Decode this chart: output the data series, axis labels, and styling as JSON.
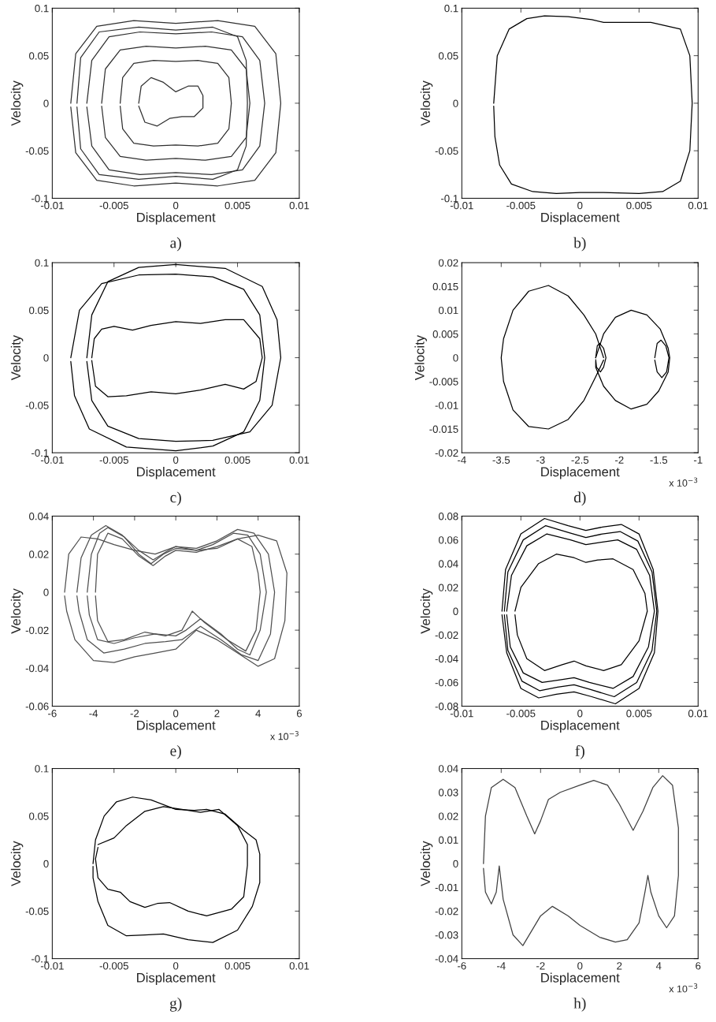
{
  "chart_data": [
    {
      "type": "line",
      "xlabel": "Displacement",
      "ylabel": "Velocity",
      "xlim": [
        -0.01,
        0.01
      ],
      "ylim": [
        -0.1,
        0.1
      ],
      "xticks": [
        -0.01,
        -0.005,
        0,
        0.005,
        0.01
      ],
      "yticks": [
        -0.1,
        -0.05,
        0,
        0.05,
        0.1
      ],
      "annotations": [
        "a)"
      ],
      "series": [
        {
          "color": "#303030",
          "x": [
            -0.0085,
            -0.0081,
            -0.0064,
            -0.0034,
            0,
            0.0034,
            0.0064,
            0.0081,
            0.0085,
            0.0081,
            0.0064,
            0.0034,
            0,
            -0.0034,
            -0.0064,
            -0.0081,
            -0.0085
          ],
          "values": [
            0,
            0.052,
            0.081,
            0.087,
            0.084,
            0.087,
            0.081,
            0.052,
            0,
            -0.052,
            -0.081,
            -0.087,
            -0.084,
            -0.087,
            -0.081,
            -0.052,
            -0.004
          ]
        },
        {
          "color": "#303030",
          "x": [
            -0.008,
            -0.0077,
            -0.0062,
            -0.003,
            0,
            0.003,
            0.005,
            0.0057,
            0.0058,
            0.0057,
            0.005,
            0.003,
            0,
            -0.003,
            -0.0062,
            -0.0077,
            -0.008
          ],
          "values": [
            0,
            0.048,
            0.075,
            0.08,
            0.077,
            0.08,
            0.07,
            0.045,
            0,
            -0.045,
            -0.07,
            -0.08,
            -0.077,
            -0.08,
            -0.075,
            -0.048,
            -0.004
          ]
        },
        {
          "color": "#303030",
          "x": [
            -0.0072,
            -0.0068,
            -0.0054,
            -0.0029,
            0,
            0.0029,
            0.0054,
            0.0068,
            0.0072,
            0.0068,
            0.0054,
            0.0029,
            0,
            -0.0029,
            -0.0054,
            -0.0068,
            -0.0072
          ],
          "values": [
            0,
            0.045,
            0.07,
            0.075,
            0.073,
            0.075,
            0.07,
            0.045,
            0,
            -0.045,
            -0.07,
            -0.075,
            -0.073,
            -0.075,
            -0.07,
            -0.045,
            -0.004
          ]
        },
        {
          "color": "#303030",
          "x": [
            -0.006,
            -0.0057,
            -0.0045,
            -0.0024,
            0,
            0.0024,
            0.0045,
            0.0057,
            0.006,
            0.0057,
            0.0045,
            0.0024,
            0,
            -0.0024,
            -0.0045,
            -0.0057,
            -0.006
          ],
          "values": [
            0,
            0.036,
            0.056,
            0.06,
            0.058,
            0.06,
            0.056,
            0.036,
            0,
            -0.036,
            -0.056,
            -0.06,
            -0.058,
            -0.06,
            -0.056,
            -0.036,
            -0.003
          ]
        },
        {
          "color": "#303030",
          "x": [
            -0.0045,
            -0.0043,
            -0.0034,
            -0.0018,
            0,
            0.0018,
            0.0034,
            0.0043,
            0.0045,
            0.0043,
            0.0034,
            0.0018,
            0,
            -0.0018,
            -0.0034,
            -0.0043,
            -0.0045
          ],
          "values": [
            0,
            0.027,
            0.042,
            0.045,
            0.044,
            0.045,
            0.042,
            0.027,
            0,
            -0.027,
            -0.042,
            -0.045,
            -0.044,
            -0.045,
            -0.042,
            -0.027,
            -0.003
          ]
        },
        {
          "color": "#303030",
          "x": [
            -0.003,
            -0.0028,
            -0.002,
            -0.001,
            0,
            0.001,
            0.0018,
            0.0022,
            0.0022,
            0.0015,
            0.0005,
            -0.0005,
            -0.0015,
            -0.0025,
            -0.003
          ],
          "values": [
            0,
            0.018,
            0.027,
            0.022,
            0.012,
            0.018,
            0.018,
            0.008,
            -0.005,
            -0.014,
            -0.014,
            -0.016,
            -0.024,
            -0.02,
            -0.003
          ]
        }
      ]
    },
    {
      "type": "line",
      "xlabel": "Displacement",
      "ylabel": "Velocity",
      "xlim": [
        -0.01,
        0.01
      ],
      "ylim": [
        -0.1,
        0.1
      ],
      "xticks": [
        -0.01,
        -0.005,
        0,
        0.005,
        0.01
      ],
      "yticks": [
        -0.1,
        -0.05,
        0,
        0.05,
        0.1
      ],
      "annotations": [
        "b)"
      ],
      "series": [
        {
          "color": "#000000",
          "x": [
            -0.0073,
            -0.007,
            -0.006,
            -0.0045,
            -0.003,
            -0.001,
            0.001,
            0.002,
            0.004,
            0.006,
            0.0085,
            0.0093,
            0.0095,
            0.0093,
            0.0085,
            0.007,
            0.005,
            0.002,
            0,
            -0.002,
            -0.004,
            -0.0058,
            -0.0068,
            -0.0072,
            -0.0073
          ],
          "values": [
            0,
            0.05,
            0.078,
            0.089,
            0.092,
            0.091,
            0.088,
            0.085,
            0.085,
            0.085,
            0.078,
            0.05,
            0,
            -0.05,
            -0.082,
            -0.093,
            -0.095,
            -0.094,
            -0.094,
            -0.095,
            -0.093,
            -0.085,
            -0.065,
            -0.035,
            -0.003
          ]
        }
      ]
    },
    {
      "type": "line",
      "xlabel": "Displacement",
      "ylabel": "Velocity",
      "xlim": [
        -0.01,
        0.01
      ],
      "ylim": [
        -0.1,
        0.1
      ],
      "xticks": [
        -0.01,
        -0.005,
        0,
        0.005,
        0.01
      ],
      "yticks": [
        -0.1,
        -0.05,
        0,
        0.05,
        0.1
      ],
      "annotations": [
        "c)"
      ],
      "series": [
        {
          "color": "#000000",
          "x": [
            -0.0085,
            -0.0078,
            -0.006,
            -0.003,
            0,
            0.003,
            0.0055,
            0.0068,
            0.0072,
            0.0068,
            0.0055,
            0.003,
            0,
            -0.004,
            -0.007,
            -0.0082,
            -0.0085
          ],
          "values": [
            0,
            0.05,
            0.078,
            0.087,
            0.088,
            0.085,
            0.072,
            0.045,
            0,
            -0.045,
            -0.078,
            -0.093,
            -0.098,
            -0.094,
            -0.075,
            -0.04,
            -0.004
          ]
        },
        {
          "color": "#000000",
          "x": [
            -0.0072,
            -0.0068,
            -0.0055,
            -0.003,
            0,
            0.004,
            0.007,
            0.0082,
            0.0085,
            0.0078,
            0.006,
            0.003,
            0,
            -0.003,
            -0.0055,
            -0.0068,
            -0.0072
          ],
          "values": [
            0,
            0.045,
            0.08,
            0.095,
            0.098,
            0.094,
            0.075,
            0.04,
            0,
            -0.05,
            -0.078,
            -0.087,
            -0.088,
            -0.085,
            -0.072,
            -0.045,
            -0.004
          ]
        },
        {
          "color": "#000000",
          "x": [
            -0.0068,
            -0.0066,
            -0.006,
            -0.005,
            -0.0035,
            -0.002,
            0,
            0.002,
            0.004,
            0.0055,
            0.0068,
            0.007,
            0.0065,
            0.0055,
            0.004,
            0.002,
            0,
            -0.002,
            -0.004,
            -0.0055,
            -0.0065,
            -0.0068
          ],
          "values": [
            0,
            0.02,
            0.03,
            0.033,
            0.029,
            0.034,
            0.038,
            0.036,
            0.04,
            0.04,
            0.02,
            0,
            -0.025,
            -0.033,
            -0.028,
            -0.034,
            -0.038,
            -0.036,
            -0.04,
            -0.041,
            -0.03,
            -0.003
          ]
        }
      ]
    },
    {
      "type": "line",
      "xlabel": "Displacement",
      "ylabel": "Velocity",
      "xlim": [
        -4,
        -1
      ],
      "ylim": [
        -0.02,
        0.02
      ],
      "xticks": [
        -4,
        -3.5,
        -3,
        -2.5,
        -2,
        -1.5,
        -1
      ],
      "yticks": [
        -0.02,
        -0.015,
        -0.01,
        -0.005,
        0,
        0.005,
        0.01,
        0.015,
        0.02
      ],
      "annotations": [
        "x 10$^{−3}$",
        "d)"
      ],
      "series": [
        {
          "color": "#000000",
          "x": [
            -2.2,
            -2.3,
            -2.45,
            -2.65,
            -2.9,
            -3.15,
            -3.35,
            -3.47,
            -3.5,
            -3.47,
            -3.35,
            -3.15,
            -2.9,
            -2.65,
            -2.45,
            -2.3,
            -2.2
          ],
          "values": [
            0,
            0.005,
            0.009,
            0.013,
            0.0152,
            0.014,
            0.01,
            0.004,
            0,
            -0.005,
            -0.011,
            -0.0145,
            -0.015,
            -0.013,
            -0.009,
            -0.004,
            -0.0005
          ]
        },
        {
          "color": "#000000",
          "x": [
            -2.3,
            -2.2,
            -2.05,
            -1.85,
            -1.65,
            -1.48,
            -1.38,
            -1.36,
            -1.38,
            -1.5,
            -1.65,
            -1.85,
            -2.05,
            -2.2,
            -2.3,
            -2.3
          ],
          "values": [
            0,
            0.005,
            0.0085,
            0.01,
            0.009,
            0.006,
            0.002,
            0,
            -0.003,
            -0.007,
            -0.0098,
            -0.0108,
            -0.009,
            -0.006,
            -0.002,
            -0.0008
          ]
        },
        {
          "color": "#000000",
          "x": [
            -2.3,
            -2.28,
            -2.25,
            -2.2,
            -2.17,
            -2.2,
            -2.24,
            -2.29,
            -2.3
          ],
          "values": [
            0,
            0.0025,
            0.003,
            0.002,
            0,
            -0.002,
            -0.003,
            -0.002,
            -0.0004
          ]
        },
        {
          "color": "#000000",
          "x": [
            -1.55,
            -1.52,
            -1.47,
            -1.41,
            -1.37,
            -1.4,
            -1.46,
            -1.52,
            -1.55
          ],
          "values": [
            0,
            0.003,
            0.0037,
            0.0025,
            0,
            -0.003,
            -0.0042,
            -0.003,
            -0.0005
          ]
        }
      ]
    },
    {
      "type": "line",
      "xlabel": "Displacement",
      "ylabel": "Velocity",
      "xlim": [
        -6,
        6
      ],
      "ylim": [
        -0.06,
        0.04
      ],
      "xticks": [
        -6,
        -4,
        -2,
        0,
        2,
        4,
        6
      ],
      "yticks": [
        -0.06,
        -0.04,
        -0.02,
        0,
        0.02,
        0.04
      ],
      "annotations": [
        "x 10$^{−3}$",
        "e)"
      ],
      "series": [
        {
          "color": "#505050",
          "x": [
            -4.3,
            -4.1,
            -3.7,
            -3.3,
            -2.5,
            -1.8,
            -1.2,
            -0.6,
            0,
            1,
            1.8,
            2.8,
            3.5,
            4.1,
            4.4,
            4.1,
            3.6,
            3,
            2.2,
            1.2,
            0.5,
            0,
            -1,
            -2,
            -3,
            -3.8,
            -4.2,
            -4.3
          ],
          "values": [
            0,
            0.02,
            0.031,
            0.034,
            0.029,
            0.02,
            0.015,
            0.02,
            0.023,
            0.022,
            0.025,
            0.031,
            0.03,
            0.02,
            0,
            -0.02,
            -0.033,
            -0.03,
            -0.022,
            -0.014,
            -0.02,
            -0.023,
            -0.022,
            -0.024,
            -0.027,
            -0.025,
            -0.012,
            -0.002
          ]
        },
        {
          "color": "#505050",
          "x": [
            -4.8,
            -4.6,
            -4.1,
            -3.4,
            -2.6,
            -1.8,
            -1.1,
            -0.5,
            0,
            1,
            2,
            3,
            3.8,
            4.5,
            4.8,
            4.6,
            4,
            3.2,
            2.2,
            1.2,
            0.3,
            -0.5,
            -1.5,
            -2.5,
            -3.5,
            -4.3,
            -4.7,
            -4.8
          ],
          "values": [
            0,
            0.018,
            0.03,
            0.035,
            0.03,
            0.022,
            0.017,
            0.021,
            0.024,
            0.023,
            0.027,
            0.033,
            0.031,
            0.02,
            0,
            -0.022,
            -0.036,
            -0.033,
            -0.025,
            -0.018,
            -0.025,
            -0.026,
            -0.027,
            -0.03,
            -0.032,
            -0.025,
            -0.01,
            -0.002
          ]
        },
        {
          "color": "#505050",
          "x": [
            -5.4,
            -5.2,
            -4.6,
            -3.8,
            -3,
            -2,
            -1,
            0,
            1,
            2,
            3,
            4,
            4.9,
            5.4,
            5.3,
            4.8,
            4,
            3,
            2,
            1,
            0,
            -1,
            -2,
            -3,
            -4,
            -4.9,
            -5.3,
            -5.4
          ],
          "values": [
            0,
            0.02,
            0.029,
            0.028,
            0.025,
            0.022,
            0.02,
            0.024,
            0.022,
            0.023,
            0.028,
            0.03,
            0.027,
            0.01,
            -0.015,
            -0.035,
            -0.039,
            -0.032,
            -0.025,
            -0.02,
            -0.03,
            -0.032,
            -0.034,
            -0.037,
            -0.036,
            -0.025,
            -0.01,
            -0.002
          ]
        },
        {
          "color": "#505050",
          "x": [
            -3.9,
            -3.8,
            -3.3,
            -2.6,
            -1.8,
            -1.1,
            -0.5,
            0,
            1,
            2,
            3,
            3.7,
            4,
            4.1,
            3.9,
            3.4,
            2.5,
            1.4,
            0.8,
            0.3,
            -0.5,
            -1.5,
            -2.5,
            -3.3,
            -3.8,
            -3.9
          ],
          "values": [
            0,
            0.02,
            0.031,
            0.028,
            0.019,
            0.014,
            0.019,
            0.022,
            0.021,
            0.024,
            0.028,
            0.024,
            0.01,
            0,
            -0.02,
            -0.031,
            -0.025,
            -0.016,
            -0.01,
            -0.02,
            -0.023,
            -0.021,
            -0.025,
            -0.026,
            -0.015,
            -0.002
          ]
        }
      ]
    },
    {
      "type": "line",
      "xlabel": "Displacement",
      "ylabel": "Velocity",
      "xlim": [
        -0.01,
        0.01
      ],
      "ylim": [
        -0.08,
        0.08
      ],
      "xticks": [
        -0.01,
        -0.005,
        0,
        0.005,
        0.01
      ],
      "yticks": [
        -0.08,
        -0.06,
        -0.04,
        -0.02,
        0,
        0.02,
        0.04,
        0.06,
        0.08
      ],
      "annotations": [
        "f)"
      ],
      "series": [
        {
          "color": "#000000",
          "x": [
            -0.0055,
            -0.005,
            -0.0035,
            -0.002,
            -0.0005,
            0.0005,
            0.0015,
            0.0028,
            0.0045,
            0.0055,
            0.0057,
            0.005,
            0.0035,
            0.002,
            0.0005,
            -0.0005,
            -0.0015,
            -0.003,
            -0.0045,
            -0.0053,
            -0.0055
          ],
          "values": [
            0,
            0.02,
            0.04,
            0.048,
            0.045,
            0.041,
            0.043,
            0.044,
            0.035,
            0.015,
            0,
            -0.025,
            -0.045,
            -0.05,
            -0.046,
            -0.042,
            -0.045,
            -0.05,
            -0.04,
            -0.02,
            -0.003
          ]
        },
        {
          "color": "#000000",
          "x": [
            -0.0062,
            -0.0058,
            -0.0045,
            -0.0028,
            -0.0008,
            0.0005,
            0.0018,
            0.0032,
            0.0048,
            0.0059,
            0.0063,
            0.0058,
            0.0045,
            0.0028,
            0.0008,
            -0.0005,
            -0.0018,
            -0.0032,
            -0.0048,
            -0.0059,
            -0.0062
          ],
          "values": [
            0,
            0.03,
            0.055,
            0.065,
            0.06,
            0.056,
            0.058,
            0.06,
            0.052,
            0.03,
            0,
            -0.03,
            -0.055,
            -0.065,
            -0.06,
            -0.056,
            -0.058,
            -0.06,
            -0.052,
            -0.03,
            -0.003
          ]
        },
        {
          "color": "#000000",
          "x": [
            -0.0064,
            -0.0061,
            -0.0048,
            -0.0029,
            -0.0009,
            0.0005,
            0.0019,
            0.0034,
            0.0049,
            0.0061,
            0.0065,
            0.0061,
            0.0048,
            0.0029,
            0.0009,
            -0.0005,
            -0.0019,
            -0.0034,
            -0.0049,
            -0.0061,
            -0.0064
          ],
          "values": [
            0,
            0.033,
            0.06,
            0.072,
            0.066,
            0.062,
            0.065,
            0.067,
            0.059,
            0.033,
            0,
            -0.033,
            -0.06,
            -0.072,
            -0.066,
            -0.062,
            -0.064,
            -0.067,
            -0.059,
            -0.033,
            -0.003
          ]
        },
        {
          "color": "#000000",
          "x": [
            -0.0066,
            -0.0063,
            -0.005,
            -0.003,
            -0.001,
            0.0005,
            0.002,
            0.0035,
            0.005,
            0.0062,
            0.0066,
            0.0063,
            0.005,
            0.003,
            0.001,
            -0.0005,
            -0.002,
            -0.0035,
            -0.005,
            -0.0062,
            -0.0066
          ],
          "values": [
            0,
            0.035,
            0.065,
            0.078,
            0.072,
            0.068,
            0.071,
            0.073,
            0.065,
            0.035,
            0,
            -0.035,
            -0.065,
            -0.078,
            -0.072,
            -0.068,
            -0.07,
            -0.073,
            -0.065,
            -0.035,
            -0.003
          ]
        }
      ]
    },
    {
      "type": "line",
      "xlabel": "Displacement",
      "ylabel": "Velocity",
      "xlim": [
        -0.01,
        0.01
      ],
      "ylim": [
        -0.1,
        0.1
      ],
      "xticks": [
        -0.01,
        -0.005,
        0,
        0.005,
        0.01
      ],
      "yticks": [
        -0.1,
        -0.05,
        0,
        0.05,
        0.1
      ],
      "annotations": [
        "g)"
      ],
      "series": [
        {
          "color": "#000000",
          "x": [
            -0.0067,
            -0.0065,
            -0.0058,
            -0.0048,
            -0.0035,
            -0.002,
            0,
            0.0015,
            0.0025,
            0.004,
            0.0055,
            0.0065,
            0.0068,
            0.0068,
            0.0062,
            0.005,
            0.003,
            0.001,
            -0.001,
            -0.0025,
            -0.004,
            -0.0055,
            -0.0063,
            -0.0067,
            -0.0067
          ],
          "values": [
            0,
            0.025,
            0.05,
            0.065,
            0.07,
            0.067,
            0.057,
            0.056,
            0.057,
            0.052,
            0.035,
            0.025,
            0.01,
            -0.02,
            -0.045,
            -0.07,
            -0.083,
            -0.08,
            -0.074,
            -0.075,
            -0.076,
            -0.065,
            -0.04,
            -0.015,
            -0.003
          ]
        },
        {
          "color": "#000000",
          "x": [
            -0.0063,
            -0.005,
            -0.004,
            -0.0025,
            -0.001,
            0.0005,
            0.002,
            0.0035,
            0.005,
            0.0058,
            0.0058,
            0.0055,
            0.0045,
            0.0025,
            0.001,
            -0.0005,
            -0.0015,
            -0.0025,
            -0.0037,
            -0.0045,
            -0.0055,
            -0.0063,
            -0.0065,
            -0.0063
          ],
          "values": [
            0.02,
            0.027,
            0.04,
            0.055,
            0.06,
            0.057,
            0.054,
            0.057,
            0.04,
            0.02,
            -0.002,
            -0.035,
            -0.048,
            -0.055,
            -0.05,
            -0.041,
            -0.042,
            -0.046,
            -0.04,
            -0.03,
            -0.027,
            -0.015,
            0.005,
            0.017
          ]
        }
      ]
    },
    {
      "type": "line",
      "xlabel": "Displacement",
      "ylabel": "Velocity",
      "xlim": [
        -6,
        6
      ],
      "ylim": [
        -0.04,
        0.04
      ],
      "xticks": [
        -6,
        -4,
        -2,
        0,
        2,
        4,
        6
      ],
      "yticks": [
        -0.04,
        -0.03,
        -0.02,
        -0.01,
        0,
        0.01,
        0.02,
        0.03,
        0.04
      ],
      "annotations": [
        "x 10$^{−3}$",
        "h)"
      ],
      "series": [
        {
          "color": "#404040",
          "x": [
            -4.9,
            -4.8,
            -4.5,
            -3.9,
            -3.3,
            -2.7,
            -2.3,
            -2.0,
            -1.6,
            -1,
            0,
            0.7,
            1.4,
            2.0,
            2.7,
            3.2,
            3.7,
            4.2,
            4.7,
            5.0,
            5.0,
            4.8,
            4.4,
            4.0,
            3.6,
            3.45,
            3.3,
            3.0,
            2.4,
            1.8,
            1,
            0,
            -0.6,
            -1.4,
            -2.0,
            -2.9,
            -3.4,
            -3.9,
            -4.1,
            -4.25,
            -4.5,
            -4.8,
            -4.9
          ],
          "values": [
            0,
            0.02,
            0.032,
            0.0355,
            0.032,
            0.02,
            0.0125,
            0.018,
            0.027,
            0.03,
            0.033,
            0.035,
            0.033,
            0.025,
            0.014,
            0.022,
            0.032,
            0.037,
            0.033,
            0.015,
            -0.005,
            -0.022,
            -0.027,
            -0.022,
            -0.012,
            -0.005,
            -0.012,
            -0.025,
            -0.032,
            -0.033,
            -0.031,
            -0.026,
            -0.022,
            -0.018,
            -0.022,
            -0.0345,
            -0.03,
            -0.015,
            -0.001,
            -0.012,
            -0.017,
            -0.012,
            -0.002
          ]
        }
      ]
    }
  ]
}
